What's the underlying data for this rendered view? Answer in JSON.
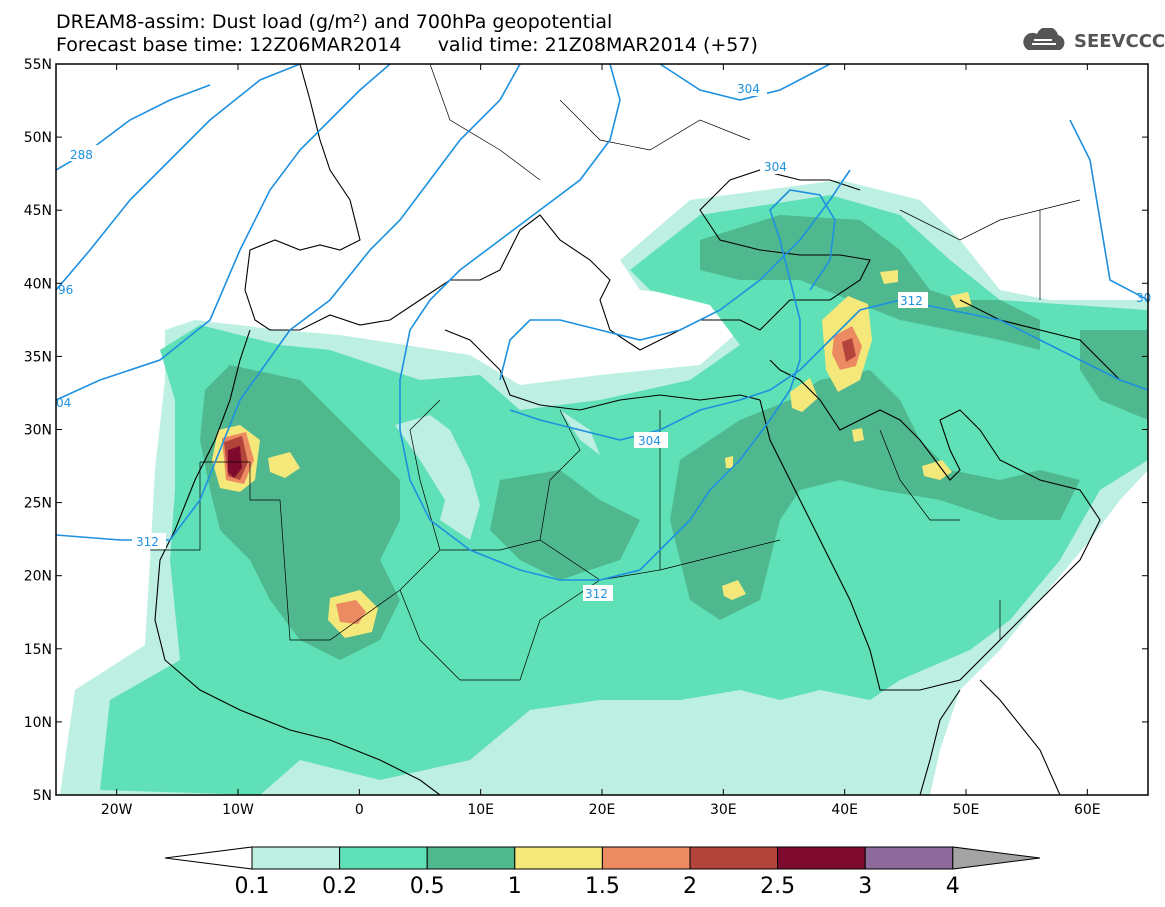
{
  "title": {
    "line1": "DREAM8-assim: Dust load (g/m²) and 700hPa geopotential",
    "line2": "Forecast base time: 12Z06MAR2014      valid time: 21Z08MAR2014 (+57)"
  },
  "logo": {
    "icon": "cloud-icon",
    "text": "SEEVCCC"
  },
  "axes": {
    "lat_labels": [
      "55N",
      "50N",
      "45N",
      "40N",
      "35N",
      "30N",
      "25N",
      "20N",
      "15N",
      "10N",
      "5N"
    ],
    "lon_labels": [
      "20W",
      "10W",
      "0",
      "10E",
      "20E",
      "30E",
      "40E",
      "50E",
      "60E"
    ],
    "lat_range": [
      5,
      55
    ],
    "lon_range": [
      -25,
      65
    ]
  },
  "contour_labels": [
    "288",
    "96",
    "04",
    "304",
    "304",
    "304",
    "312",
    "312",
    "312",
    "30"
  ],
  "colorbar": {
    "ticks": [
      "0.1",
      "0.2",
      "0.5",
      "1",
      "1.5",
      "2",
      "2.5",
      "3",
      "4"
    ],
    "colors": [
      "#bdefe3",
      "#5fe0b6",
      "#4fb88f",
      "#f5e87a",
      "#ec8a62",
      "#b2443b",
      "#7e0b2d",
      "#8c6a9c",
      "#a4a4a4"
    ]
  },
  "colors": {
    "contour": "#1e90e0",
    "coast": "#000000"
  }
}
